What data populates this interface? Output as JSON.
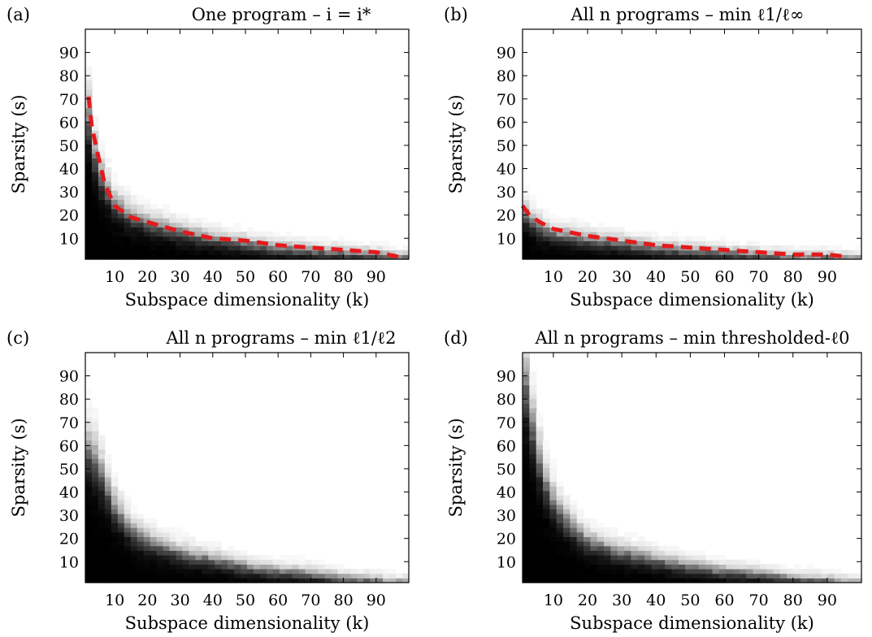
{
  "figure": {
    "panels": [
      {
        "label": "(a)",
        "title": "One program – i = i*",
        "xlabel": "Subspace dimensionality (k)",
        "ylabel": "Sparsity (s)"
      },
      {
        "label": "(b)",
        "title": "All n programs – min ℓ1/ℓ∞",
        "xlabel": "Subspace dimensionality (k)",
        "ylabel": "Sparsity (s)"
      },
      {
        "label": "(c)",
        "title": "All n programs – min ℓ1/ℓ2",
        "xlabel": "Subspace dimensionality (k)",
        "ylabel": "Sparsity (s)"
      },
      {
        "label": "(d)",
        "title": "All n programs – min thresholded-ℓ0",
        "xlabel": "Subspace dimensionality (k)",
        "ylabel": "Sparsity (s)"
      }
    ]
  },
  "chart_data": [
    {
      "type": "heatmap",
      "label": "(a)",
      "title": "One program – i = i*",
      "xlabel": "Subspace dimensionality (k)",
      "ylabel": "Sparsity (s)",
      "xlim": [
        1,
        100
      ],
      "ylim": [
        1,
        100
      ],
      "xticks": [
        10,
        20,
        30,
        40,
        50,
        60,
        70,
        80,
        90
      ],
      "yticks": [
        10,
        20,
        30,
        40,
        50,
        60,
        70,
        80,
        90
      ],
      "colormap": "gray (black = success, white = failure)",
      "boundary": {
        "k": [
          1,
          3,
          6,
          10,
          15,
          20,
          30,
          40,
          50,
          60,
          70,
          80,
          90,
          97
        ],
        "s": [
          72,
          52,
          36,
          25,
          20,
          17,
          13,
          10,
          8,
          6,
          5,
          4,
          3,
          2
        ]
      },
      "threshold_curve": {
        "color": "#e41a1c",
        "style": "dashed",
        "k": [
          2,
          3,
          5,
          7,
          10,
          15,
          20,
          30,
          40,
          50,
          60,
          70,
          80,
          90,
          97
        ],
        "s": [
          71,
          58,
          45,
          33,
          24,
          19,
          17,
          13,
          10,
          9,
          7,
          6,
          5,
          4,
          2
        ]
      }
    },
    {
      "type": "heatmap",
      "label": "(b)",
      "title": "All n programs – min ℓ1/ℓ∞",
      "xlabel": "Subspace dimensionality (k)",
      "ylabel": "Sparsity (s)",
      "xlim": [
        1,
        100
      ],
      "ylim": [
        1,
        100
      ],
      "xticks": [
        10,
        20,
        30,
        40,
        50,
        60,
        70,
        80,
        90
      ],
      "yticks": [
        10,
        20,
        30,
        40,
        50,
        60,
        70,
        80,
        90
      ],
      "colormap": "gray (black = success, white = failure)",
      "boundary": {
        "k": [
          1,
          5,
          10,
          20,
          30,
          40,
          50,
          60,
          70,
          80,
          90,
          100
        ],
        "s": [
          22,
          16,
          12,
          10,
          8,
          6,
          5,
          4,
          3,
          2,
          2,
          1
        ]
      },
      "threshold_curve": {
        "color": "#e41a1c",
        "style": "dashed",
        "k": [
          1,
          3,
          6,
          10,
          20,
          30,
          40,
          50,
          60,
          70,
          80,
          90,
          96
        ],
        "s": [
          24,
          20,
          17,
          14,
          11,
          9,
          7,
          6,
          5,
          4,
          3,
          3,
          2
        ]
      }
    },
    {
      "type": "heatmap",
      "label": "(c)",
      "title": "All n programs – min ℓ1/ℓ2",
      "xlabel": "Subspace dimensionality (k)",
      "ylabel": "Sparsity (s)",
      "xlim": [
        1,
        100
      ],
      "ylim": [
        1,
        100
      ],
      "xticks": [
        10,
        20,
        30,
        40,
        50,
        60,
        70,
        80,
        90
      ],
      "yticks": [
        10,
        20,
        30,
        40,
        50,
        60,
        70,
        80,
        90
      ],
      "colormap": "gray (black = success, white = failure)",
      "boundary": {
        "k": [
          1,
          4,
          7,
          10,
          15,
          20,
          30,
          40,
          50,
          60,
          70,
          80,
          90,
          94
        ],
        "s": [
          60,
          55,
          44,
          34,
          24,
          19,
          14,
          11,
          8,
          6,
          5,
          3,
          2,
          1
        ]
      }
    },
    {
      "type": "heatmap",
      "label": "(d)",
      "title": "All n programs – min thresholded-ℓ0",
      "xlabel": "Subspace dimensionality (k)",
      "ylabel": "Sparsity (s)",
      "xlim": [
        1,
        100
      ],
      "ylim": [
        1,
        100
      ],
      "xticks": [
        10,
        20,
        30,
        40,
        50,
        60,
        70,
        80,
        90
      ],
      "yticks": [
        10,
        20,
        30,
        40,
        50,
        60,
        70,
        80,
        90
      ],
      "colormap": "gray (black = success, white = failure)",
      "boundary": {
        "k": [
          1,
          2,
          4,
          6,
          9,
          12,
          15,
          20,
          30,
          40,
          50,
          60,
          70,
          80,
          90,
          96
        ],
        "s": [
          91,
          86,
          68,
          54,
          39,
          31,
          26,
          19,
          14,
          11,
          8,
          6,
          5,
          3,
          2,
          1
        ]
      }
    }
  ]
}
